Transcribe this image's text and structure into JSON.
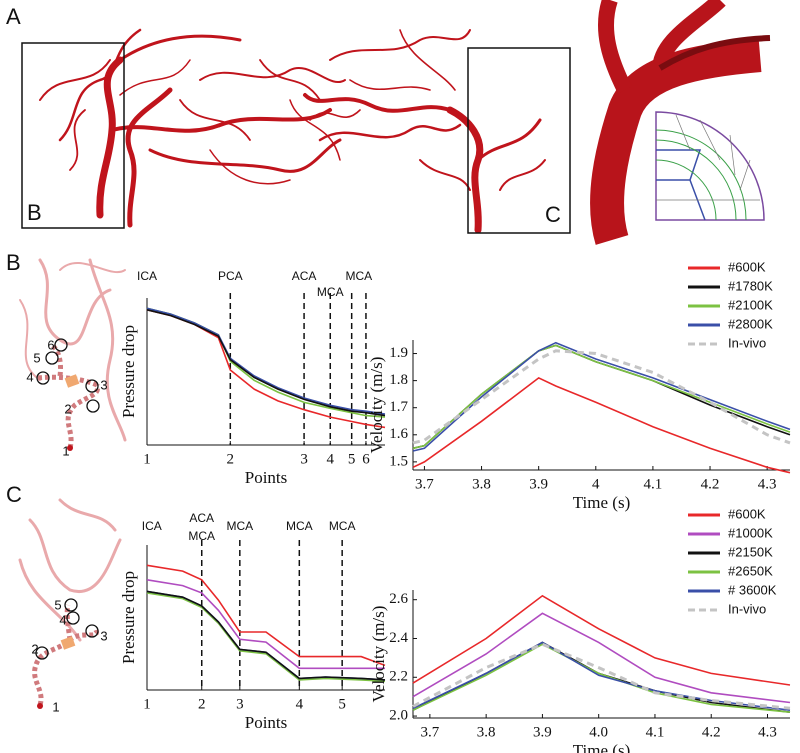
{
  "panel_labels": {
    "a": "A",
    "a_box_b": "B",
    "a_box_c": "C",
    "b": "B",
    "c": "C"
  },
  "insets": {
    "b_points": [
      "1",
      "2",
      "3",
      "4",
      "5",
      "6"
    ],
    "c_points": [
      "1",
      "2",
      "3",
      "4",
      "5"
    ]
  },
  "chart_data": [
    {
      "type": "line",
      "ylabel": "Pressure drop",
      "xlabel": "Points",
      "xlim": [
        0,
        100
      ],
      "ylim": [
        0,
        1
      ],
      "xticks": [
        {
          "value": 0,
          "label": "1"
        },
        {
          "value": 35,
          "label": "2"
        },
        {
          "value": 66,
          "label": "3"
        },
        {
          "value": 77,
          "label": "4"
        },
        {
          "value": 86,
          "label": "5"
        },
        {
          "value": 92,
          "label": "6"
        }
      ],
      "annotations": [
        {
          "text": "ICA",
          "x": 0
        },
        {
          "text": "PCA",
          "x": 35
        },
        {
          "text": "ACA",
          "x": 66
        },
        {
          "text": "MCA",
          "x": 77
        },
        {
          "text": "MCA",
          "x": 89
        }
      ],
      "x": [
        0,
        10,
        20,
        30,
        35,
        45,
        55,
        66,
        77,
        86,
        92,
        100
      ],
      "series": [
        {
          "color": "#e8282a",
          "values": [
            0.92,
            0.88,
            0.82,
            0.73,
            0.51,
            0.38,
            0.3,
            0.24,
            0.19,
            0.16,
            0.14,
            0.12
          ]
        },
        {
          "color": "#7cc242",
          "values": [
            0.93,
            0.89,
            0.83,
            0.75,
            0.57,
            0.44,
            0.36,
            0.29,
            0.25,
            0.22,
            0.2,
            0.19
          ]
        },
        {
          "color": "#3a4fa8",
          "values": [
            0.93,
            0.89,
            0.83,
            0.75,
            0.59,
            0.47,
            0.39,
            0.32,
            0.27,
            0.24,
            0.23,
            0.21
          ]
        },
        {
          "color": "#111111",
          "values": [
            0.92,
            0.88,
            0.82,
            0.74,
            0.58,
            0.46,
            0.38,
            0.31,
            0.26,
            0.23,
            0.22,
            0.2
          ]
        }
      ]
    },
    {
      "type": "line",
      "ylabel": "Velocity (m/s)",
      "xlabel": "Time (s)",
      "xlim": [
        3.68,
        4.34
      ],
      "ylim": [
        1.47,
        1.95
      ],
      "xticks": [
        3.7,
        3.8,
        3.9,
        4,
        4.1,
        4.2,
        4.3
      ],
      "yticks": [
        1.5,
        1.6,
        1.7,
        1.8,
        1.9
      ],
      "x": [
        3.68,
        3.7,
        3.8,
        3.9,
        3.93,
        4.0,
        4.1,
        4.2,
        4.3,
        4.34
      ],
      "series": [
        {
          "name": "#600K",
          "color": "#e8282a",
          "values": [
            1.48,
            1.5,
            1.65,
            1.81,
            1.78,
            1.72,
            1.63,
            1.55,
            1.48,
            1.46
          ]
        },
        {
          "name": "#1780K",
          "color": "#111111",
          "values": [
            1.55,
            1.56,
            1.75,
            1.91,
            1.93,
            1.87,
            1.8,
            1.71,
            1.63,
            1.6
          ]
        },
        {
          "name": "#2100K",
          "color": "#7cc242",
          "values": [
            1.55,
            1.56,
            1.75,
            1.91,
            1.93,
            1.87,
            1.8,
            1.72,
            1.64,
            1.61
          ]
        },
        {
          "name": "#2800K",
          "color": "#3a4fa8",
          "values": [
            1.54,
            1.55,
            1.74,
            1.91,
            1.94,
            1.88,
            1.81,
            1.73,
            1.65,
            1.62
          ]
        },
        {
          "name": "In-vivo",
          "color": "#c4c4c4",
          "dashed": true,
          "values": [
            1.57,
            1.58,
            1.73,
            1.88,
            1.91,
            1.9,
            1.83,
            1.72,
            1.6,
            1.57
          ]
        }
      ]
    },
    {
      "type": "line",
      "ylabel": "Pressure drop",
      "xlabel": "Points",
      "xlim": [
        0,
        100
      ],
      "ylim": [
        0,
        1
      ],
      "xticks": [
        {
          "value": 0,
          "label": "1"
        },
        {
          "value": 23,
          "label": "2"
        },
        {
          "value": 39,
          "label": "3"
        },
        {
          "value": 64,
          "label": "4"
        },
        {
          "value": 82,
          "label": "5"
        }
      ],
      "annotations": [
        {
          "text": "ICA",
          "x": 2
        },
        {
          "text": "ACA",
          "x": 23
        },
        {
          "text": "MCA",
          "x": 23
        },
        {
          "text": "MCA",
          "x": 39
        },
        {
          "text": "MCA",
          "x": 64
        },
        {
          "text": "MCA",
          "x": 82
        }
      ],
      "x": [
        0,
        15,
        23,
        30,
        39,
        50,
        64,
        75,
        90,
        100
      ],
      "series": [
        {
          "color": "#e8282a",
          "values": [
            0.86,
            0.82,
            0.76,
            0.62,
            0.4,
            0.4,
            0.23,
            0.23,
            0.23,
            0.17
          ]
        },
        {
          "color": "#b04cc0",
          "values": [
            0.76,
            0.72,
            0.67,
            0.55,
            0.35,
            0.33,
            0.15,
            0.15,
            0.15,
            0.15
          ]
        },
        {
          "color": "#7cc242",
          "values": [
            0.67,
            0.63,
            0.57,
            0.46,
            0.27,
            0.25,
            0.07,
            0.08,
            0.07,
            0.06
          ]
        },
        {
          "color": "#3a4fa8",
          "values": [
            0.68,
            0.64,
            0.58,
            0.47,
            0.28,
            0.26,
            0.08,
            0.09,
            0.08,
            0.07
          ]
        },
        {
          "color": "#111111",
          "values": [
            0.68,
            0.64,
            0.58,
            0.47,
            0.28,
            0.26,
            0.08,
            0.09,
            0.08,
            0.07
          ]
        }
      ]
    },
    {
      "type": "line",
      "ylabel": "Velocity (m/s)",
      "xlabel": "Time (s)",
      "xlim": [
        3.67,
        4.34
      ],
      "ylim": [
        1.99,
        2.65
      ],
      "xticks": [
        3.7,
        3.8,
        3.9,
        {
          "value": 4,
          "label": "4.0"
        },
        4.1,
        4.2,
        4.3
      ],
      "yticks": [
        {
          "value": 2,
          "label": "2.0"
        },
        2.2,
        2.4,
        2.6
      ],
      "x": [
        3.67,
        3.8,
        3.9,
        4.0,
        4.1,
        4.2,
        4.34
      ],
      "series": [
        {
          "name": "#600K",
          "color": "#e8282a",
          "values": [
            2.17,
            2.4,
            2.62,
            2.45,
            2.3,
            2.22,
            2.16
          ]
        },
        {
          "name": "#1000K",
          "color": "#b04cc0",
          "values": [
            2.1,
            2.32,
            2.53,
            2.38,
            2.2,
            2.12,
            2.07
          ]
        },
        {
          "name": "#2150K",
          "color": "#111111",
          "values": [
            2.03,
            2.22,
            2.38,
            2.22,
            2.13,
            2.07,
            2.02
          ]
        },
        {
          "name": "#2650K",
          "color": "#7cc242",
          "values": [
            2.03,
            2.21,
            2.37,
            2.22,
            2.12,
            2.06,
            2.02
          ]
        },
        {
          "name": "# 3600K",
          "color": "#3a4fa8",
          "values": [
            2.04,
            2.22,
            2.38,
            2.21,
            2.13,
            2.08,
            2.03
          ]
        },
        {
          "name": "In-vivo",
          "color": "#c4c4c4",
          "dashed": true,
          "values": [
            2.05,
            2.25,
            2.37,
            2.25,
            2.12,
            2.08,
            2.04
          ]
        }
      ]
    }
  ]
}
